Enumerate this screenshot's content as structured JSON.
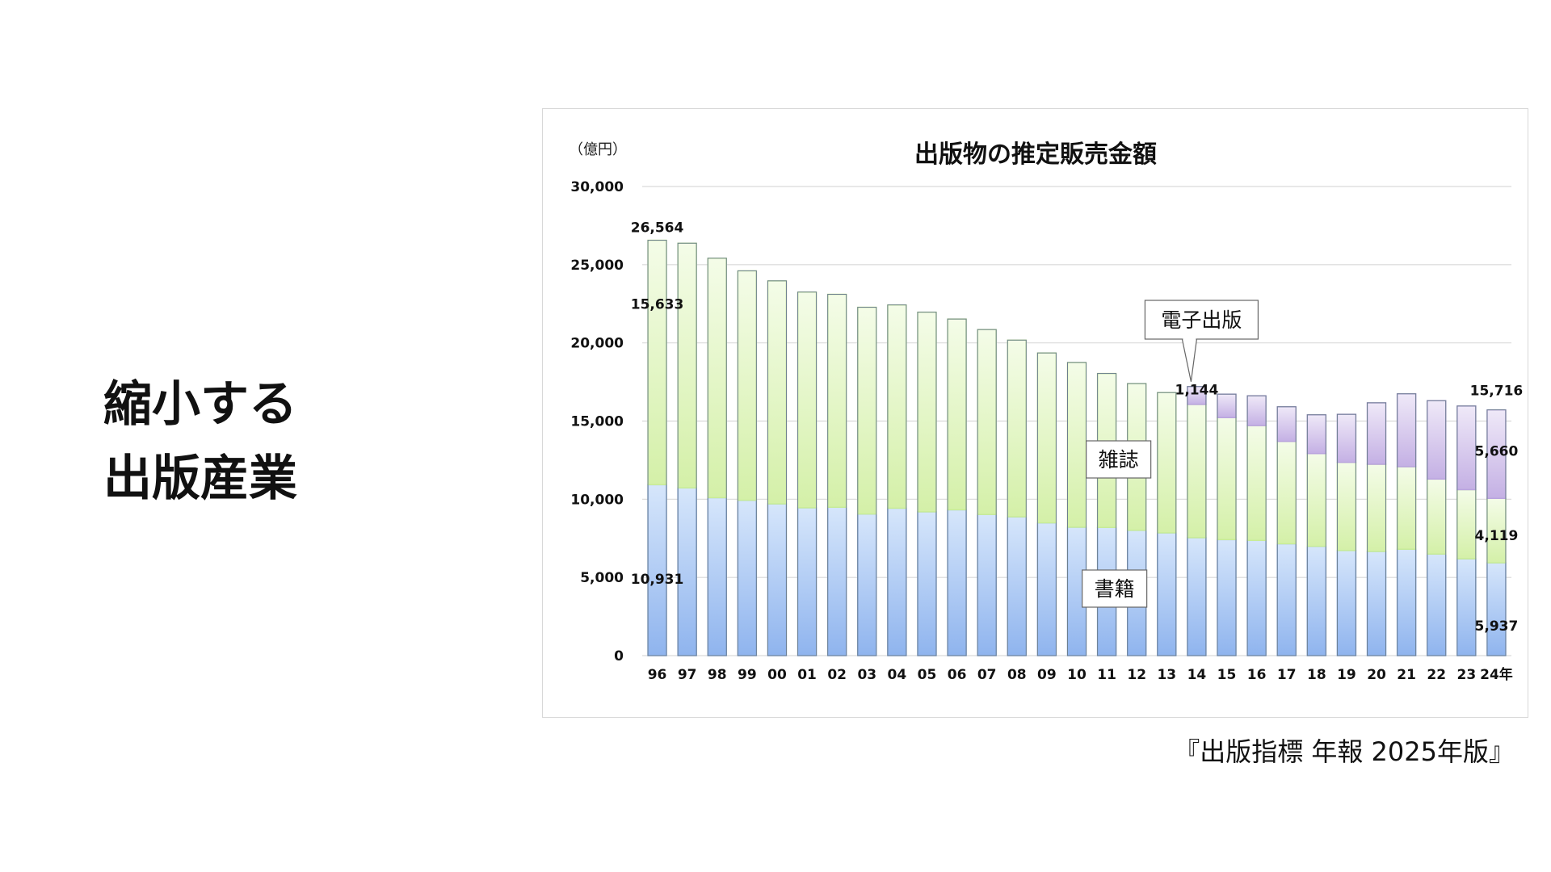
{
  "heading": {
    "line1": "縮小する",
    "line2": "出版産業"
  },
  "source_note": "『出版指標 年報 2025年版』",
  "colors": {
    "books": "#a9c8f5",
    "books_top": "#8bb0ee",
    "magazines": "#e3f7c4",
    "magazines_top": "#c8ec97",
    "ebooks": "#d4c6ec",
    "ebooks_top": "#b9a4de",
    "outline": "#555555",
    "grid": "#d9d9d9"
  },
  "chart_data": {
    "type": "bar",
    "stacked": true,
    "title": "出版物の推定販売金額",
    "unit_label": "（億円）",
    "categories": [
      "96",
      "97",
      "98",
      "99",
      "00",
      "01",
      "02",
      "03",
      "04",
      "05",
      "06",
      "07",
      "08",
      "09",
      "10",
      "11",
      "12",
      "13",
      "14",
      "15",
      "16",
      "17",
      "18",
      "19",
      "20",
      "21",
      "22",
      "23",
      "24年"
    ],
    "ylim": [
      0,
      30000
    ],
    "yticks": [
      {
        "value": 0,
        "label": "0"
      },
      {
        "value": 5000,
        "label": "5,000"
      },
      {
        "value": 10000,
        "label": "10,000"
      },
      {
        "value": 15000,
        "label": "15,000"
      },
      {
        "value": 20000,
        "label": "20,000"
      },
      {
        "value": 25000,
        "label": "25,000"
      },
      {
        "value": 30000,
        "label": "30,000"
      }
    ],
    "grid": true,
    "series": [
      {
        "name": "書籍",
        "values": [
          10931,
          10730,
          10100,
          9936,
          9706,
          9456,
          9490,
          9056,
          9429,
          9197,
          9326,
          9026,
          8878,
          8492,
          8213,
          8199,
          8013,
          7851,
          7544,
          7419,
          7370,
          7152,
          6991,
          6723,
          6661,
          6805,
          6497,
          6194,
          5937
        ]
      },
      {
        "name": "雑誌",
        "values": [
          15633,
          15644,
          15315,
          14672,
          14261,
          13794,
          13616,
          13222,
          12998,
          12767,
          12200,
          11827,
          11299,
          10864,
          10535,
          9844,
          9385,
          8972,
          8520,
          7801,
          7339,
          6548,
          5930,
          5637,
          5576,
          5276,
          4795,
          4418,
          4119
        ]
      },
      {
        "name": "電子出版",
        "values": [
          null,
          null,
          null,
          null,
          null,
          null,
          null,
          null,
          null,
          null,
          null,
          null,
          null,
          null,
          null,
          null,
          null,
          null,
          1144,
          1502,
          1909,
          2215,
          2479,
          3072,
          3931,
          4662,
          5013,
          5351,
          5660
        ]
      }
    ],
    "data_labels": {
      "total_96": "26,564",
      "magazines_96": "15,633",
      "books_96": "10,931",
      "ebooks_14": "1,144",
      "total_24": "15,716",
      "ebooks_24": "5,660",
      "magazines_24": "4,119",
      "books_24": "5,937"
    },
    "callouts": {
      "ebooks": "電子出版",
      "magazines": "雑誌",
      "books": "書籍"
    }
  }
}
